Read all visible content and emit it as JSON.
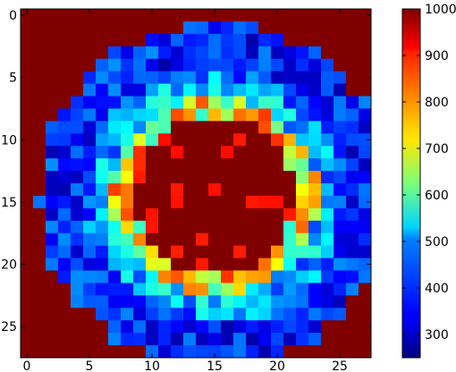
{
  "chart_data": {
    "type": "heatmap",
    "title": "",
    "xlabel": "",
    "ylabel": "",
    "rows": 28,
    "cols": 28,
    "x_ticks": [
      0,
      5,
      10,
      15,
      20,
      25
    ],
    "y_ticks": [
      0,
      5,
      10,
      15,
      20,
      25
    ],
    "x_tick_labels": [
      "0",
      "5",
      "10",
      "15",
      "20",
      "25"
    ],
    "y_tick_labels": [
      "0",
      "5",
      "10",
      "15",
      "20",
      "25"
    ],
    "colorbar": {
      "min": 250,
      "max": 1000,
      "ticks": [
        300,
        400,
        500,
        600,
        700,
        800,
        900,
        1000
      ],
      "tick_labels": [
        "300",
        "400",
        "500",
        "600",
        "700",
        "800",
        "900",
        "1000"
      ],
      "colormap": "jet"
    },
    "grid": false,
    "structure_approx": {
      "background_value": 1000,
      "ring_center": [
        15.0,
        14.5
      ],
      "ring_radius_mean": 9.5,
      "ring_value_range": [
        300,
        450
      ],
      "inner_disc_value": 1000,
      "inner_rim_value_range": [
        600,
        800
      ]
    }
  }
}
